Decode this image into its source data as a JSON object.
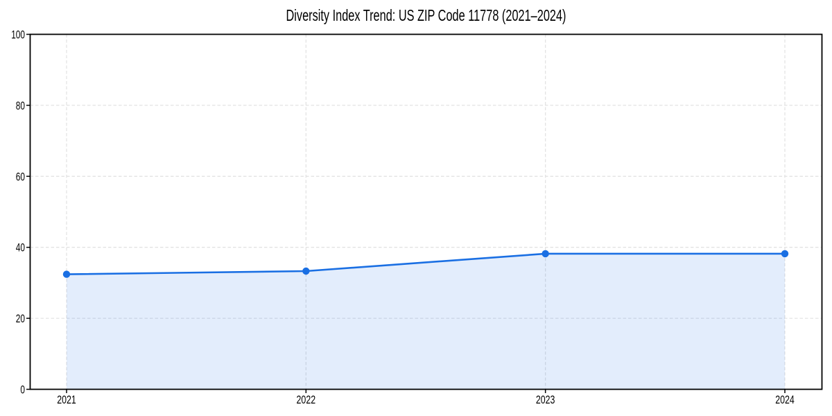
{
  "chart_data": {
    "type": "area",
    "title": "Diversity Index Trend: US ZIP Code 11778 (2021–2024)",
    "x": [
      "2021",
      "2022",
      "2023",
      "2024"
    ],
    "series": [
      {
        "name": "Diversity Index",
        "values": [
          32.4,
          33.3,
          38.2,
          38.2
        ]
      }
    ],
    "xlabel": "",
    "ylabel": "",
    "ylim": [
      0,
      100
    ],
    "yticks": [
      0,
      20,
      40,
      60,
      80,
      100
    ],
    "grid": "dashed-both-axes",
    "legend_position": "none",
    "marker": "circle",
    "colors": {
      "line": "#1a6fe3",
      "marker": "#1a6fe3",
      "area_fill": "rgba(26,111,227,0.12)",
      "grid": "#e3e3e3",
      "axis": "#000000",
      "text": "#000000",
      "background": "#ffffff"
    }
  }
}
